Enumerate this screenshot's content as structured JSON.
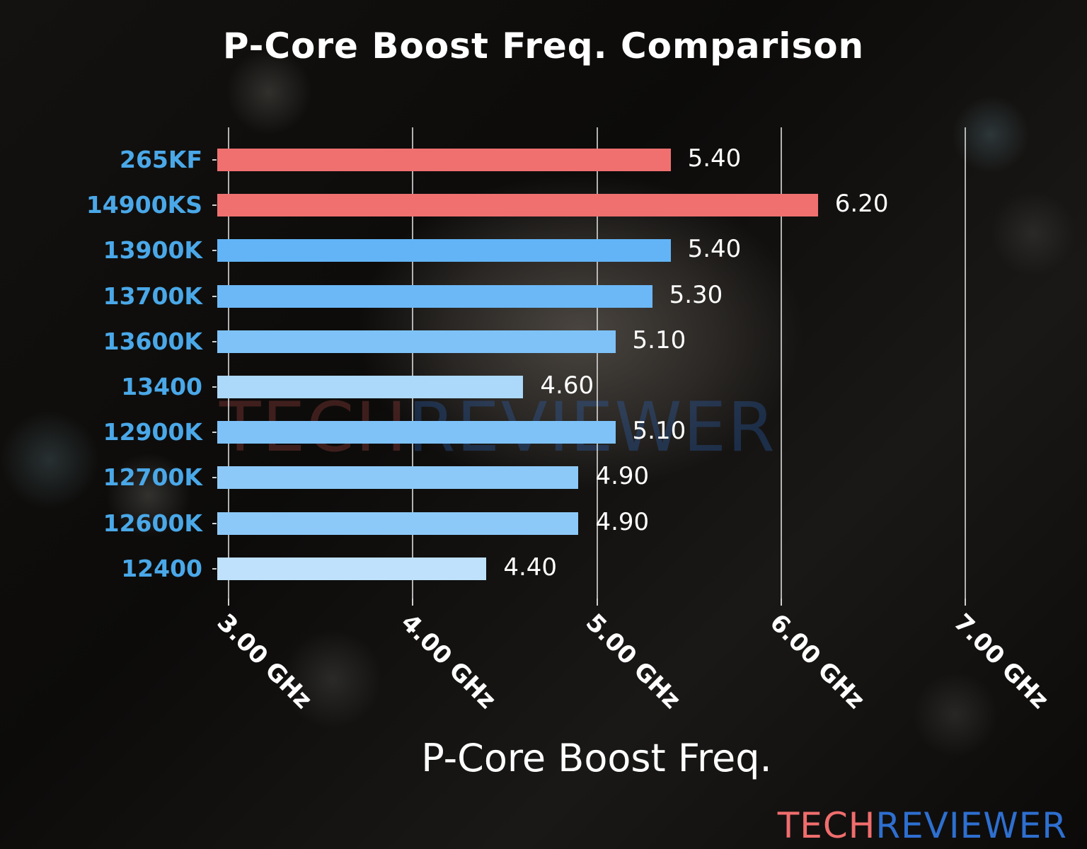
{
  "chart_data": {
    "type": "bar",
    "orientation": "horizontal",
    "title": "P-Core Boost Freq. Comparison",
    "xlabel": "P-Core Boost Freq.",
    "ylabel": "",
    "xlim": [
      2.94,
      7.0
    ],
    "x_ticks": [
      "3.00 GHz",
      "4.00 GHz",
      "5.00 GHz",
      "6.00 GHz",
      "7.00 GHz"
    ],
    "x_tick_values": [
      3.0,
      4.0,
      5.0,
      6.0,
      7.0
    ],
    "grid": "vertical",
    "legend": null,
    "categories": [
      "265KF",
      "14900KS",
      "13900K",
      "13700K",
      "13600K",
      "13400",
      "12900K",
      "12700K",
      "12600K",
      "12400"
    ],
    "values": [
      5.4,
      6.2,
      5.4,
      5.3,
      5.1,
      4.6,
      5.1,
      4.9,
      4.9,
      4.4
    ],
    "value_labels": [
      "5.40",
      "6.20",
      "5.40",
      "5.30",
      "5.10",
      "4.60",
      "5.10",
      "4.90",
      "4.90",
      "4.40"
    ],
    "bar_colors": [
      "#f07070",
      "#f07070",
      "#62b4f6",
      "#6cb8f6",
      "#7ec2f8",
      "#acd8fa",
      "#7ec2f8",
      "#8dc9f8",
      "#8dc9f8",
      "#bfe1fc"
    ],
    "label_color": "#4aa8e8"
  },
  "watermark": {
    "part1": "TECH",
    "part2": "REVIEWER",
    "color1": "#c0504d",
    "color2": "#2e6fd0"
  },
  "brand": {
    "part1": "TECH",
    "part2": "REVIEWER"
  }
}
